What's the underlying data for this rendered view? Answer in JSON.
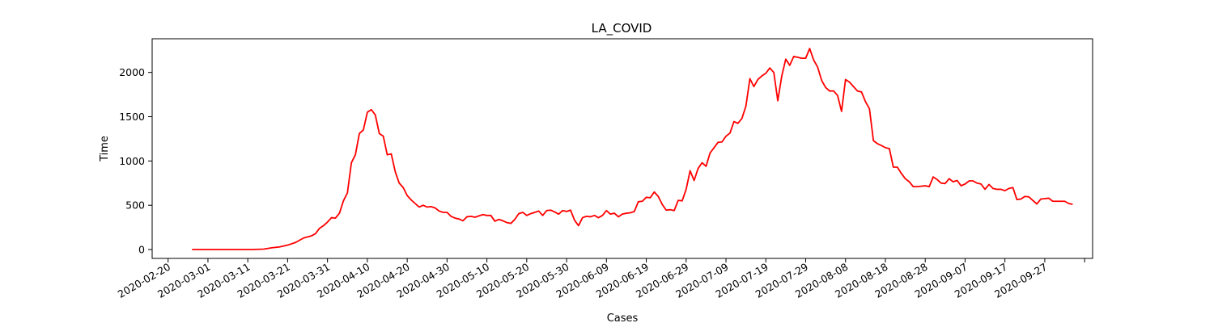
{
  "chart_data": {
    "type": "line",
    "title": "LA_COVID",
    "xlabel": "Cases",
    "ylabel": "Time",
    "line_color": "#ff0000",
    "grid": false,
    "xlim": [
      "2020-02-16",
      "2020-10-09"
    ],
    "ylim": [
      -100,
      2380
    ],
    "x_tick_labels": [
      "2020-02-20",
      "2020-03-01",
      "2020-03-11",
      "2020-03-21",
      "2020-03-31",
      "2020-04-10",
      "2020-04-20",
      "2020-04-30",
      "2020-05-10",
      "2020-05-20",
      "2020-05-30",
      "2020-06-09",
      "2020-06-19",
      "2020-06-29",
      "2020-07-09",
      "2020-07-19",
      "2020-07-29",
      "2020-08-08",
      "2020-08-18",
      "2020-08-28",
      "2020-09-07",
      "2020-09-17",
      "2020-09-27"
    ],
    "y_tick_labels": [
      "0",
      "500",
      "1000",
      "1500",
      "2000"
    ],
    "series": [
      {
        "points": [
          [
            "2020-02-26",
            0
          ],
          [
            "2020-03-02",
            0
          ],
          [
            "2020-03-07",
            0
          ],
          [
            "2020-03-12",
            0
          ],
          [
            "2020-03-15",
            5
          ],
          [
            "2020-03-17",
            20
          ],
          [
            "2020-03-19",
            30
          ],
          [
            "2020-03-21",
            50
          ],
          [
            "2020-03-23",
            80
          ],
          [
            "2020-03-25",
            130
          ],
          [
            "2020-03-27",
            155
          ],
          [
            "2020-03-28",
            180
          ],
          [
            "2020-03-29",
            240
          ],
          [
            "2020-03-30",
            270
          ],
          [
            "2020-03-31",
            310
          ],
          [
            "2020-04-01",
            360
          ],
          [
            "2020-04-02",
            355
          ],
          [
            "2020-04-03",
            410
          ],
          [
            "2020-04-04",
            550
          ],
          [
            "2020-04-05",
            640
          ],
          [
            "2020-04-06",
            980
          ],
          [
            "2020-04-07",
            1070
          ],
          [
            "2020-04-08",
            1310
          ],
          [
            "2020-04-09",
            1350
          ],
          [
            "2020-04-10",
            1550
          ],
          [
            "2020-04-11",
            1580
          ],
          [
            "2020-04-12",
            1520
          ],
          [
            "2020-04-13",
            1310
          ],
          [
            "2020-04-14",
            1280
          ],
          [
            "2020-04-15",
            1070
          ],
          [
            "2020-04-16",
            1080
          ],
          [
            "2020-04-17",
            880
          ],
          [
            "2020-04-18",
            750
          ],
          [
            "2020-04-19",
            700
          ],
          [
            "2020-04-20",
            610
          ],
          [
            "2020-04-21",
            560
          ],
          [
            "2020-04-22",
            520
          ],
          [
            "2020-04-23",
            480
          ],
          [
            "2020-04-24",
            500
          ],
          [
            "2020-04-25",
            480
          ],
          [
            "2020-04-26",
            485
          ],
          [
            "2020-04-27",
            470
          ],
          [
            "2020-04-28",
            435
          ],
          [
            "2020-04-29",
            420
          ],
          [
            "2020-04-30",
            420
          ],
          [
            "2020-05-01",
            375
          ],
          [
            "2020-05-02",
            355
          ],
          [
            "2020-05-03",
            345
          ],
          [
            "2020-05-04",
            325
          ],
          [
            "2020-05-05",
            370
          ],
          [
            "2020-05-06",
            375
          ],
          [
            "2020-05-07",
            365
          ],
          [
            "2020-05-08",
            380
          ],
          [
            "2020-05-09",
            395
          ],
          [
            "2020-05-10",
            385
          ],
          [
            "2020-05-11",
            385
          ],
          [
            "2020-05-12",
            320
          ],
          [
            "2020-05-13",
            340
          ],
          [
            "2020-05-14",
            325
          ],
          [
            "2020-05-15",
            305
          ],
          [
            "2020-05-16",
            295
          ],
          [
            "2020-05-17",
            340
          ],
          [
            "2020-05-18",
            405
          ],
          [
            "2020-05-19",
            420
          ],
          [
            "2020-05-20",
            385
          ],
          [
            "2020-05-21",
            405
          ],
          [
            "2020-05-22",
            420
          ],
          [
            "2020-05-23",
            435
          ],
          [
            "2020-05-24",
            385
          ],
          [
            "2020-05-25",
            440
          ],
          [
            "2020-05-26",
            445
          ],
          [
            "2020-05-27",
            425
          ],
          [
            "2020-05-28",
            400
          ],
          [
            "2020-05-29",
            440
          ],
          [
            "2020-05-30",
            430
          ],
          [
            "2020-05-31",
            445
          ],
          [
            "2020-06-01",
            330
          ],
          [
            "2020-06-02",
            270
          ],
          [
            "2020-06-03",
            360
          ],
          [
            "2020-06-04",
            375
          ],
          [
            "2020-06-05",
            370
          ],
          [
            "2020-06-06",
            385
          ],
          [
            "2020-06-07",
            360
          ],
          [
            "2020-06-08",
            385
          ],
          [
            "2020-06-09",
            440
          ],
          [
            "2020-06-10",
            400
          ],
          [
            "2020-06-11",
            410
          ],
          [
            "2020-06-12",
            370
          ],
          [
            "2020-06-13",
            400
          ],
          [
            "2020-06-14",
            410
          ],
          [
            "2020-06-15",
            415
          ],
          [
            "2020-06-16",
            430
          ],
          [
            "2020-06-17",
            540
          ],
          [
            "2020-06-18",
            545
          ],
          [
            "2020-06-19",
            590
          ],
          [
            "2020-06-20",
            585
          ],
          [
            "2020-06-21",
            650
          ],
          [
            "2020-06-22",
            600
          ],
          [
            "2020-06-23",
            510
          ],
          [
            "2020-06-24",
            445
          ],
          [
            "2020-06-25",
            450
          ],
          [
            "2020-06-26",
            440
          ],
          [
            "2020-06-27",
            555
          ],
          [
            "2020-06-28",
            550
          ],
          [
            "2020-06-29",
            680
          ],
          [
            "2020-06-30",
            890
          ],
          [
            "2020-07-01",
            780
          ],
          [
            "2020-07-02",
            915
          ],
          [
            "2020-07-03",
            980
          ],
          [
            "2020-07-04",
            940
          ],
          [
            "2020-07-05",
            1090
          ],
          [
            "2020-07-06",
            1150
          ],
          [
            "2020-07-07",
            1210
          ],
          [
            "2020-07-08",
            1215
          ],
          [
            "2020-07-09",
            1280
          ],
          [
            "2020-07-10",
            1315
          ],
          [
            "2020-07-11",
            1445
          ],
          [
            "2020-07-12",
            1425
          ],
          [
            "2020-07-13",
            1480
          ],
          [
            "2020-07-14",
            1620
          ],
          [
            "2020-07-15",
            1930
          ],
          [
            "2020-07-16",
            1840
          ],
          [
            "2020-07-17",
            1920
          ],
          [
            "2020-07-18",
            1960
          ],
          [
            "2020-07-19",
            1990
          ],
          [
            "2020-07-20",
            2050
          ],
          [
            "2020-07-21",
            2000
          ],
          [
            "2020-07-22",
            1680
          ],
          [
            "2020-07-23",
            1960
          ],
          [
            "2020-07-24",
            2150
          ],
          [
            "2020-07-25",
            2080
          ],
          [
            "2020-07-26",
            2180
          ],
          [
            "2020-07-27",
            2170
          ],
          [
            "2020-07-28",
            2160
          ],
          [
            "2020-07-29",
            2160
          ],
          [
            "2020-07-30",
            2270
          ],
          [
            "2020-07-31",
            2140
          ],
          [
            "2020-08-01",
            2060
          ],
          [
            "2020-08-02",
            1910
          ],
          [
            "2020-08-03",
            1830
          ],
          [
            "2020-08-04",
            1790
          ],
          [
            "2020-08-05",
            1790
          ],
          [
            "2020-08-06",
            1740
          ],
          [
            "2020-08-07",
            1560
          ],
          [
            "2020-08-08",
            1920
          ],
          [
            "2020-08-09",
            1890
          ],
          [
            "2020-08-10",
            1840
          ],
          [
            "2020-08-11",
            1790
          ],
          [
            "2020-08-12",
            1780
          ],
          [
            "2020-08-13",
            1670
          ],
          [
            "2020-08-14",
            1590
          ],
          [
            "2020-08-15",
            1230
          ],
          [
            "2020-08-16",
            1195
          ],
          [
            "2020-08-17",
            1175
          ],
          [
            "2020-08-18",
            1150
          ],
          [
            "2020-08-19",
            1140
          ],
          [
            "2020-08-20",
            930
          ],
          [
            "2020-08-21",
            930
          ],
          [
            "2020-08-22",
            860
          ],
          [
            "2020-08-23",
            800
          ],
          [
            "2020-08-24",
            765
          ],
          [
            "2020-08-25",
            710
          ],
          [
            "2020-08-26",
            710
          ],
          [
            "2020-08-27",
            715
          ],
          [
            "2020-08-28",
            720
          ],
          [
            "2020-08-29",
            710
          ],
          [
            "2020-08-30",
            820
          ],
          [
            "2020-08-31",
            790
          ],
          [
            "2020-09-01",
            750
          ],
          [
            "2020-09-02",
            745
          ],
          [
            "2020-09-03",
            800
          ],
          [
            "2020-09-04",
            765
          ],
          [
            "2020-09-05",
            780
          ],
          [
            "2020-09-06",
            720
          ],
          [
            "2020-09-07",
            740
          ],
          [
            "2020-09-08",
            775
          ],
          [
            "2020-09-09",
            775
          ],
          [
            "2020-09-10",
            750
          ],
          [
            "2020-09-11",
            740
          ],
          [
            "2020-09-12",
            680
          ],
          [
            "2020-09-13",
            735
          ],
          [
            "2020-09-14",
            690
          ],
          [
            "2020-09-15",
            680
          ],
          [
            "2020-09-16",
            680
          ],
          [
            "2020-09-17",
            665
          ],
          [
            "2020-09-18",
            690
          ],
          [
            "2020-09-19",
            700
          ],
          [
            "2020-09-20",
            565
          ],
          [
            "2020-09-21",
            570
          ],
          [
            "2020-09-22",
            600
          ],
          [
            "2020-09-23",
            595
          ],
          [
            "2020-09-24",
            555
          ],
          [
            "2020-09-25",
            515
          ],
          [
            "2020-09-26",
            570
          ],
          [
            "2020-09-27",
            575
          ],
          [
            "2020-09-28",
            580
          ],
          [
            "2020-09-29",
            545
          ],
          [
            "2020-09-30",
            545
          ],
          [
            "2020-10-01",
            545
          ],
          [
            "2020-10-02",
            545
          ],
          [
            "2020-10-03",
            520
          ],
          [
            "2020-10-04",
            510
          ]
        ]
      }
    ]
  }
}
